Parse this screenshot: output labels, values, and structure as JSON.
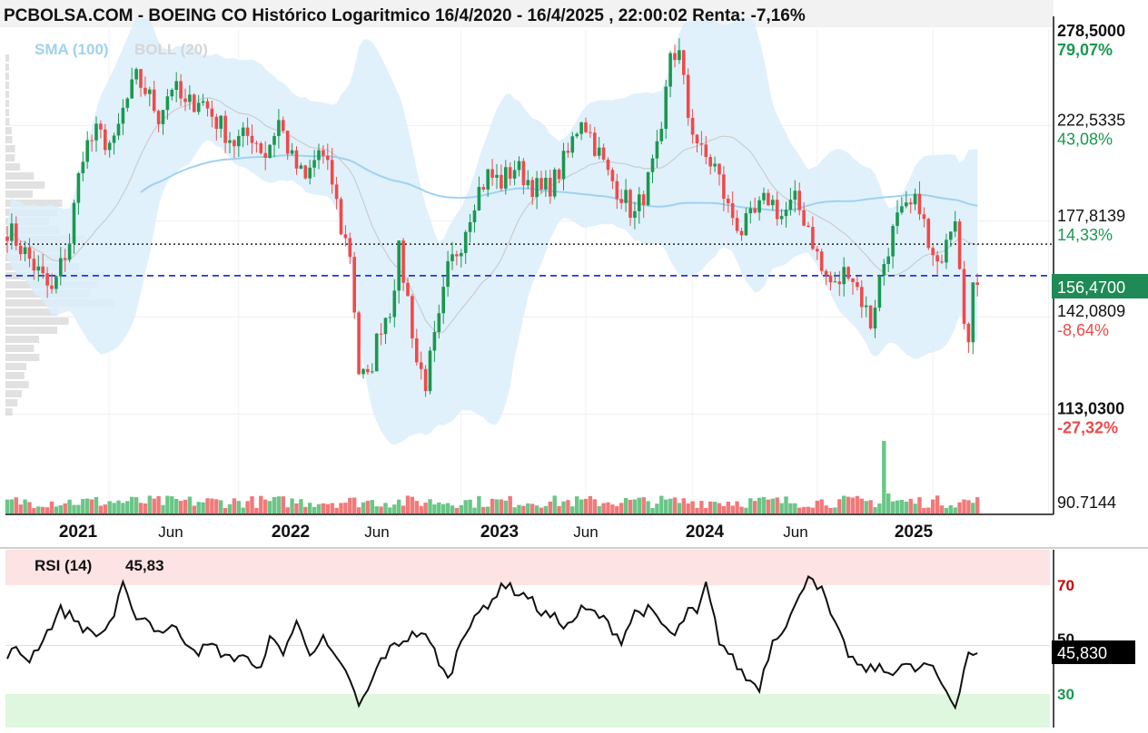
{
  "title": "PCBOLSA.COM - BOEING CO Histórico Logaritmico 16/4/2020 - 16/4/2025 , 22:00:02 Renta: -7,16%",
  "indicators": {
    "sma": "SMA (100)",
    "boll": "BOLL (20)"
  },
  "colors": {
    "up": "#1a9850",
    "down": "#ef4a4a",
    "band": "#dbeefb",
    "sma": "#9fd2f0",
    "mid": "#cccccc",
    "last_line": "#2233dd",
    "ref_line": "#222222",
    "last_badge": "#1f8a55",
    "rsi_badge": "#000000",
    "rsi_high": "#fde3e3",
    "rsi_low": "#dff7df"
  },
  "chart_data": [
    {
      "type": "candlestick",
      "scale": "log",
      "ylim": [
        90.7144,
        278.5
      ],
      "price_labels": [
        {
          "value": "278,5000",
          "pct": "79,07%",
          "pct_color": "#1a9850",
          "bold": true
        },
        {
          "value": "222,5335",
          "pct": "43,08%",
          "pct_color": "#1a9850",
          "bold": false
        },
        {
          "value": "177,8139",
          "pct": "14,33%",
          "pct_color": "#1a9850",
          "bold": false
        },
        {
          "value": "142,0809",
          "pct": "-8,64%",
          "pct_color": "#ef4a4a",
          "bold": false
        },
        {
          "value": "113,0300",
          "pct": "-27,32%",
          "pct_color": "#ef4a4a",
          "bold": true
        },
        {
          "value": "90.7144",
          "pct": "",
          "pct_color": "",
          "bold": false
        }
      ],
      "last_price": "156,4700",
      "reference_price": 168.5,
      "x_ticks": [
        {
          "label": "2021",
          "bold": true
        },
        {
          "label": "Jun",
          "bold": false
        },
        {
          "label": "2022",
          "bold": true
        },
        {
          "label": "Jun",
          "bold": false
        },
        {
          "label": "2023",
          "bold": true
        },
        {
          "label": "Jun",
          "bold": false
        },
        {
          "label": "2024",
          "bold": true
        },
        {
          "label": "Jun",
          "bold": false
        },
        {
          "label": "2025",
          "bold": true
        }
      ],
      "price_path": [
        [
          0,
          175
        ],
        [
          4,
          165
        ],
        [
          10,
          150
        ],
        [
          14,
          170
        ],
        [
          17,
          210
        ],
        [
          20,
          218
        ],
        [
          24,
          212
        ],
        [
          26,
          230
        ],
        [
          29,
          248
        ],
        [
          31,
          242
        ],
        [
          34,
          228
        ],
        [
          37,
          245
        ],
        [
          40,
          232
        ],
        [
          43,
          238
        ],
        [
          47,
          225
        ],
        [
          51,
          214
        ],
        [
          55,
          218
        ],
        [
          58,
          208
        ],
        [
          61,
          225
        ],
        [
          64,
          205
        ],
        [
          67,
          195
        ],
        [
          70,
          210
        ],
        [
          73,
          195
        ],
        [
          75,
          175
        ],
        [
          77,
          165
        ],
        [
          79,
          125
        ],
        [
          81,
          122
        ],
        [
          84,
          140
        ],
        [
          86,
          145
        ],
        [
          88,
          165
        ],
        [
          90,
          148
        ],
        [
          92,
          128
        ],
        [
          94,
          122
        ],
        [
          97,
          140
        ],
        [
          99,
          158
        ],
        [
          102,
          170
        ],
        [
          105,
          188
        ],
        [
          108,
          198
        ],
        [
          111,
          195
        ],
        [
          114,
          202
        ],
        [
          117,
          196
        ],
        [
          120,
          190
        ],
        [
          123,
          196
        ],
        [
          126,
          208
        ],
        [
          129,
          228
        ],
        [
          132,
          213
        ],
        [
          135,
          198
        ],
        [
          138,
          190
        ],
        [
          141,
          180
        ],
        [
          144,
          195
        ],
        [
          147,
          215
        ],
        [
          149,
          265
        ],
        [
          151,
          262
        ],
        [
          153,
          228
        ],
        [
          156,
          208
        ],
        [
          159,
          202
        ],
        [
          162,
          183
        ],
        [
          165,
          174
        ],
        [
          168,
          180
        ],
        [
          171,
          188
        ],
        [
          174,
          180
        ],
        [
          177,
          186
        ],
        [
          180,
          176
        ],
        [
          183,
          158
        ],
        [
          186,
          152
        ],
        [
          189,
          160
        ],
        [
          192,
          148
        ],
        [
          194,
          140
        ],
        [
          196,
          155
        ],
        [
          198,
          168
        ],
        [
          200,
          178
        ],
        [
          203,
          183
        ],
        [
          205,
          186
        ],
        [
          207,
          166
        ],
        [
          209,
          158
        ],
        [
          211,
          174
        ],
        [
          213,
          182
        ],
        [
          215,
          144
        ],
        [
          216,
          133
        ],
        [
          217,
          150
        ],
        [
          218,
          156
        ]
      ],
      "volume_spike_week": 197
    },
    {
      "type": "line",
      "name": "RSI (14)",
      "value": "45,83",
      "last_value": "45,830",
      "ylim": [
        20,
        85
      ],
      "levels": [
        "70",
        "50",
        "30"
      ],
      "rsi_path": [
        [
          0,
          47
        ],
        [
          2,
          48
        ],
        [
          5,
          45
        ],
        [
          9,
          55
        ],
        [
          12,
          63
        ],
        [
          15,
          60
        ],
        [
          18,
          55
        ],
        [
          21,
          54
        ],
        [
          24,
          61
        ],
        [
          26,
          72
        ],
        [
          28,
          62
        ],
        [
          31,
          60
        ],
        [
          34,
          55
        ],
        [
          37,
          57
        ],
        [
          40,
          52
        ],
        [
          43,
          48
        ],
        [
          46,
          50
        ],
        [
          50,
          45
        ],
        [
          53,
          47
        ],
        [
          56,
          40
        ],
        [
          59,
          52
        ],
        [
          62,
          48
        ],
        [
          65,
          58
        ],
        [
          68,
          48
        ],
        [
          71,
          52
        ],
        [
          74,
          44
        ],
        [
          77,
          38
        ],
        [
          79,
          27
        ],
        [
          82,
          37
        ],
        [
          84,
          45
        ],
        [
          87,
          50
        ],
        [
          90,
          53
        ],
        [
          93,
          55
        ],
        [
          96,
          48
        ],
        [
          99,
          37
        ],
        [
          102,
          52
        ],
        [
          105,
          62
        ],
        [
          108,
          63
        ],
        [
          111,
          73
        ],
        [
          114,
          70
        ],
        [
          117,
          68
        ],
        [
          120,
          62
        ],
        [
          123,
          60
        ],
        [
          126,
          57
        ],
        [
          129,
          63
        ],
        [
          132,
          62
        ],
        [
          135,
          58
        ],
        [
          138,
          52
        ],
        [
          141,
          62
        ],
        [
          144,
          63
        ],
        [
          147,
          58
        ],
        [
          150,
          53
        ],
        [
          153,
          63
        ],
        [
          155,
          61
        ],
        [
          157,
          72
        ],
        [
          160,
          52
        ],
        [
          163,
          45
        ],
        [
          166,
          38
        ],
        [
          169,
          35
        ],
        [
          172,
          52
        ],
        [
          175,
          58
        ],
        [
          178,
          67
        ],
        [
          180,
          77
        ],
        [
          183,
          70
        ],
        [
          186,
          57
        ],
        [
          189,
          47
        ],
        [
          192,
          41
        ],
        [
          195,
          42
        ],
        [
          198,
          40
        ],
        [
          201,
          43
        ],
        [
          204,
          41
        ],
        [
          207,
          43
        ],
        [
          210,
          36
        ],
        [
          213,
          28
        ],
        [
          216,
          48
        ],
        [
          218,
          46
        ]
      ]
    }
  ]
}
